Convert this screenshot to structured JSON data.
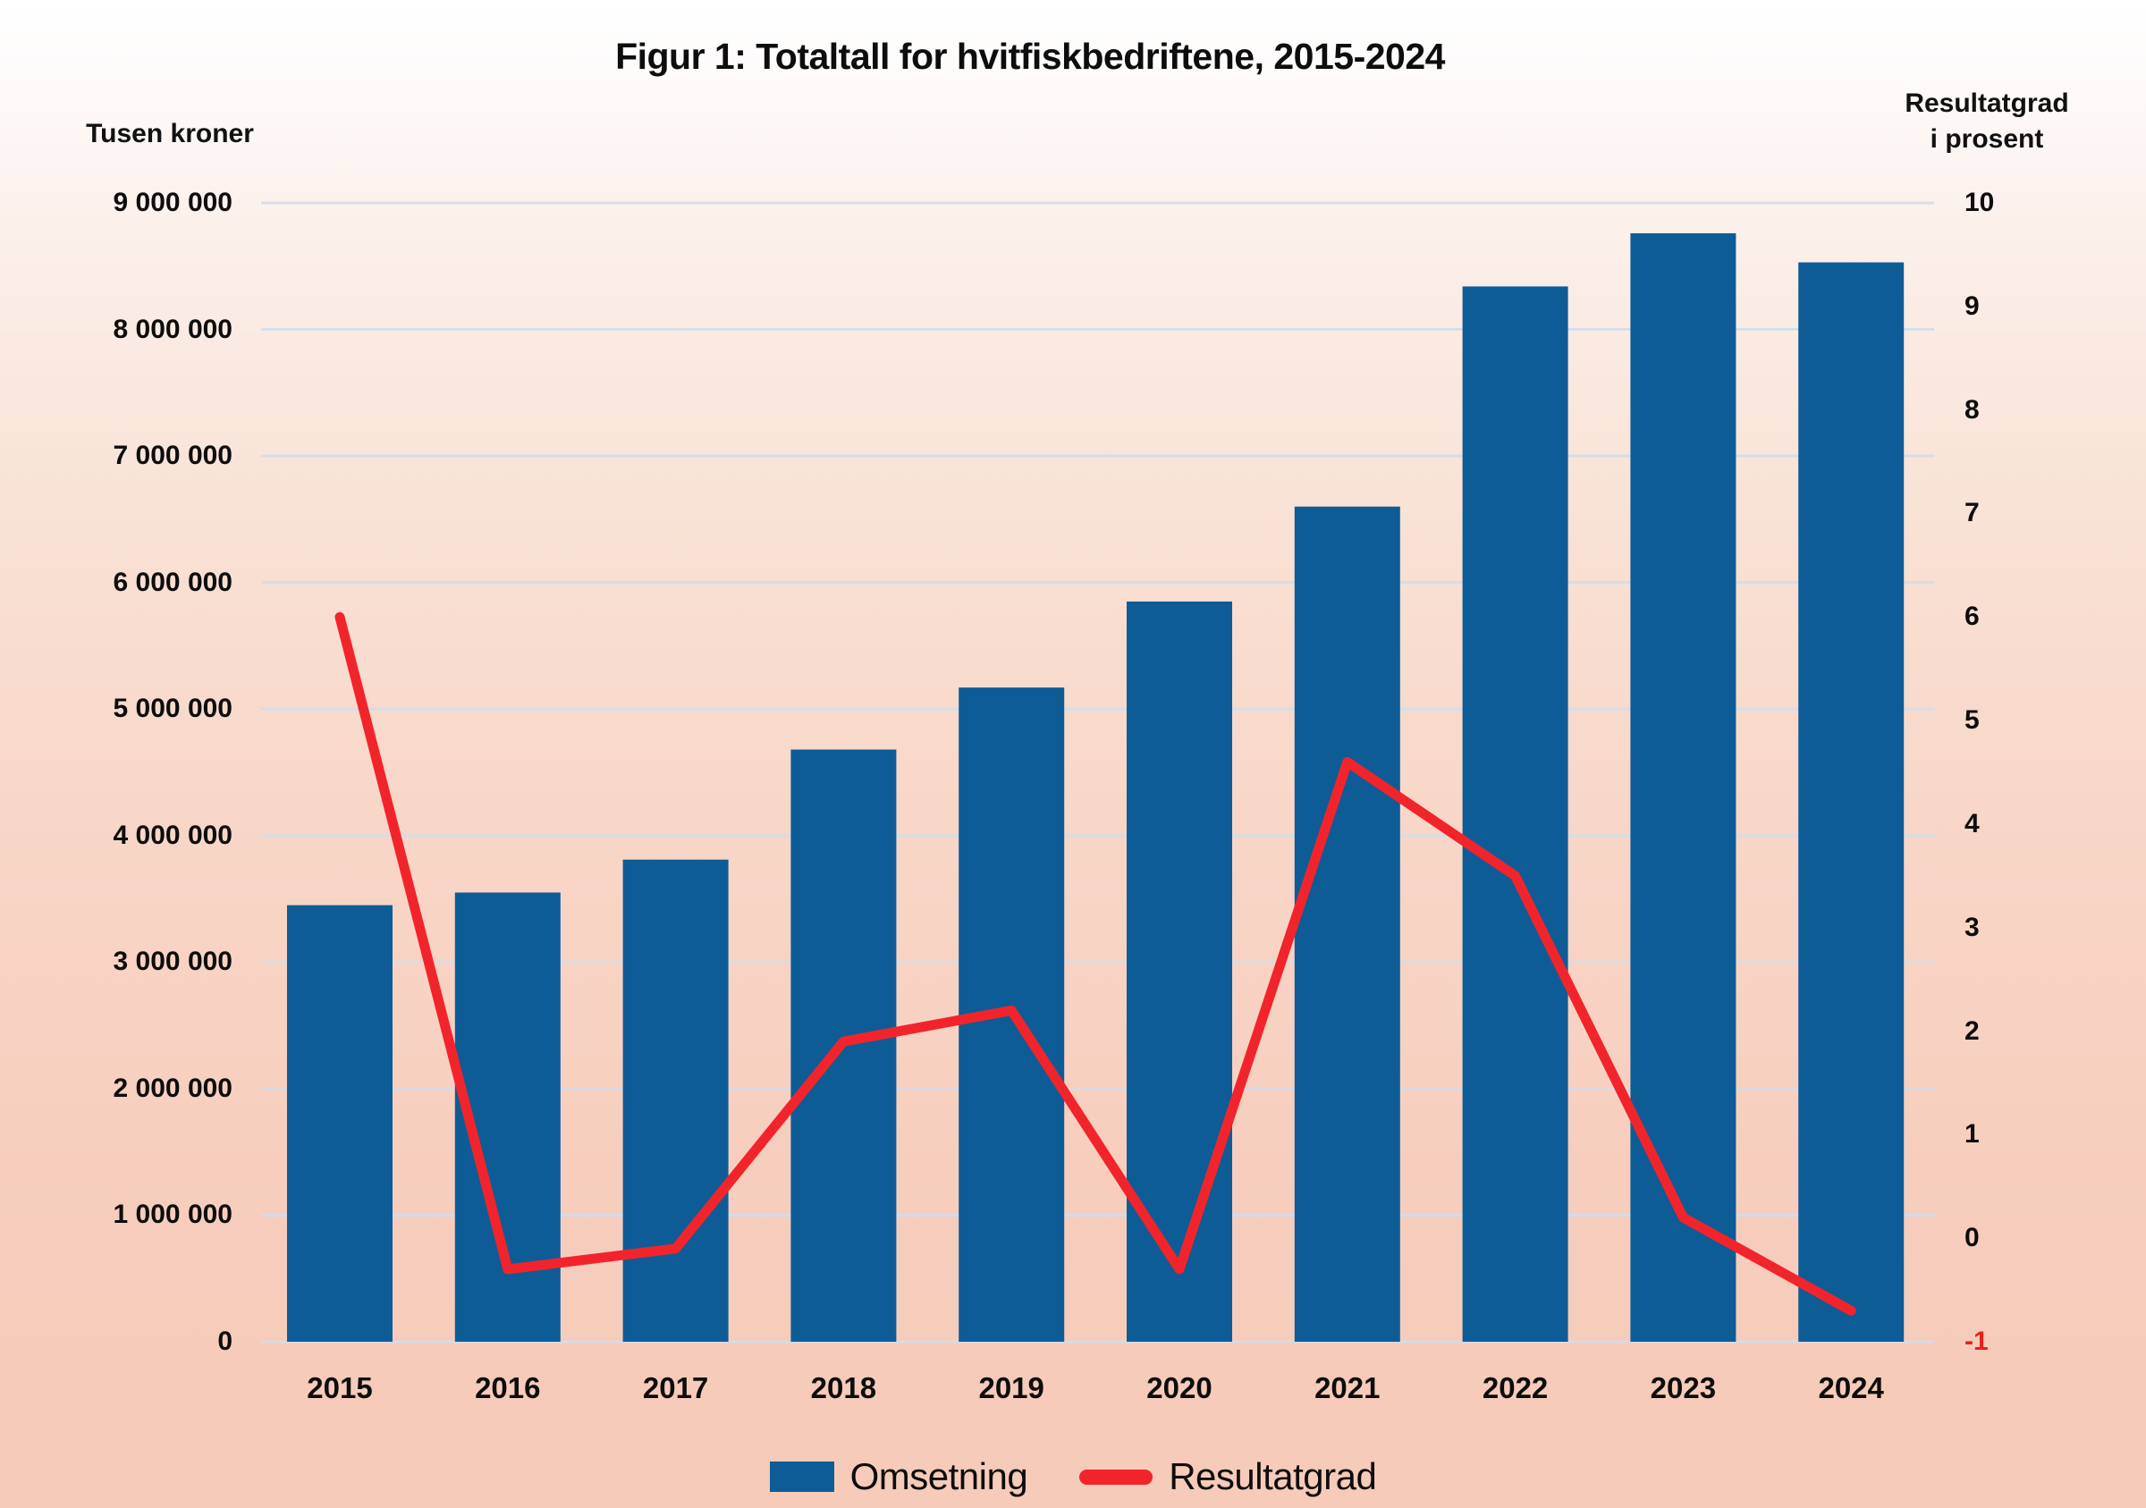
{
  "colors": {
    "background_top": "#ffffff",
    "background_bottom": "#f6cbba",
    "gridline": "#d4dde9",
    "bar": "#0e5c96",
    "line": "#f2242b",
    "negative_tick_label": "#e8201d",
    "text": "#0d0d0d"
  },
  "chart_data": {
    "type": "bar+line",
    "title": "Figur 1: Totaltall for hvitfiskbedriftene, 2015-2024",
    "categories": [
      "2015",
      "2016",
      "2017",
      "2018",
      "2019",
      "2020",
      "2021",
      "2022",
      "2023",
      "2024"
    ],
    "series": [
      {
        "name": "Omsetning",
        "type": "bar",
        "axis": "left",
        "color": "#0e5c96",
        "values": [
          3450000,
          3550000,
          3810000,
          4680000,
          5170000,
          5850000,
          6600000,
          8340000,
          8760000,
          8530000
        ]
      },
      {
        "name": "Resultatgrad",
        "type": "line",
        "axis": "right",
        "color": "#f2242b",
        "values": [
          6.0,
          -0.3,
          -0.1,
          1.9,
          2.2,
          -0.3,
          4.6,
          3.5,
          0.2,
          -0.7
        ]
      }
    ],
    "left_axis": {
      "label": "Tusen kroner",
      "range": [
        0,
        9000000
      ],
      "tick_step": 1000000,
      "tick_labels": [
        "9 000 000",
        "8 000 000",
        "7 000 000",
        "6 000 000",
        "5 000 000",
        "4 000 000",
        "3 000 000",
        "2 000 000",
        "1 000 000",
        "0"
      ]
    },
    "right_axis": {
      "label": "Resultatgrad i prosent",
      "label_lines": [
        "Resultatgrad",
        "i prosent"
      ],
      "range": [
        -1,
        10
      ],
      "tick_step": 1,
      "tick_labels": [
        "10",
        "9",
        "8",
        "7",
        "6",
        "5",
        "4",
        "3",
        "2",
        "1",
        "0",
        "-1"
      ]
    },
    "grid": true,
    "legend_position": "bottom"
  }
}
